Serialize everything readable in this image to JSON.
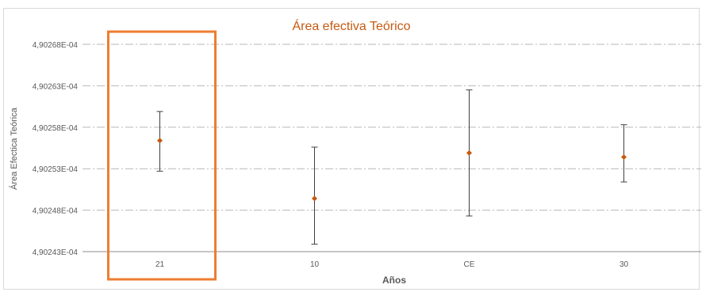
{
  "chart_data": {
    "type": "scatter",
    "title": "Área efectiva Teórico",
    "xlabel": "Años",
    "ylabel": "Área Efectica Teórica",
    "categories": [
      "21",
      "10",
      "CE",
      "30"
    ],
    "y_ticks": [
      "4,90243E-04",
      "4,90248E-04",
      "4,90253E-04",
      "4,90258E-04",
      "4,90263E-04",
      "4,90268E-04"
    ],
    "y_tick_values": [
      0.000490243,
      0.000490248,
      0.000490253,
      0.000490258,
      0.000490263,
      0.000490268
    ],
    "ylim": [
      0.000490243,
      0.000490268
    ],
    "grid": "horizontal-dash-dot",
    "series": [
      {
        "values": [
          0.0004902564,
          0.0004902494,
          0.0004902549,
          0.0004902544
        ],
        "error_low": [
          0.0004902527,
          0.0004902439,
          0.0004902473,
          0.0004902514
        ],
        "error_high": [
          0.0004902599,
          0.0004902556,
          0.0004902625,
          0.0004902583
        ]
      }
    ],
    "highlight_category": "21",
    "colors": {
      "marker": "#c55a11",
      "title": "#c55a11",
      "highlight_box": "#ed7d31",
      "error_bar": "#404040",
      "grid": "#b7b7b7",
      "axis_text": "#595959"
    }
  }
}
